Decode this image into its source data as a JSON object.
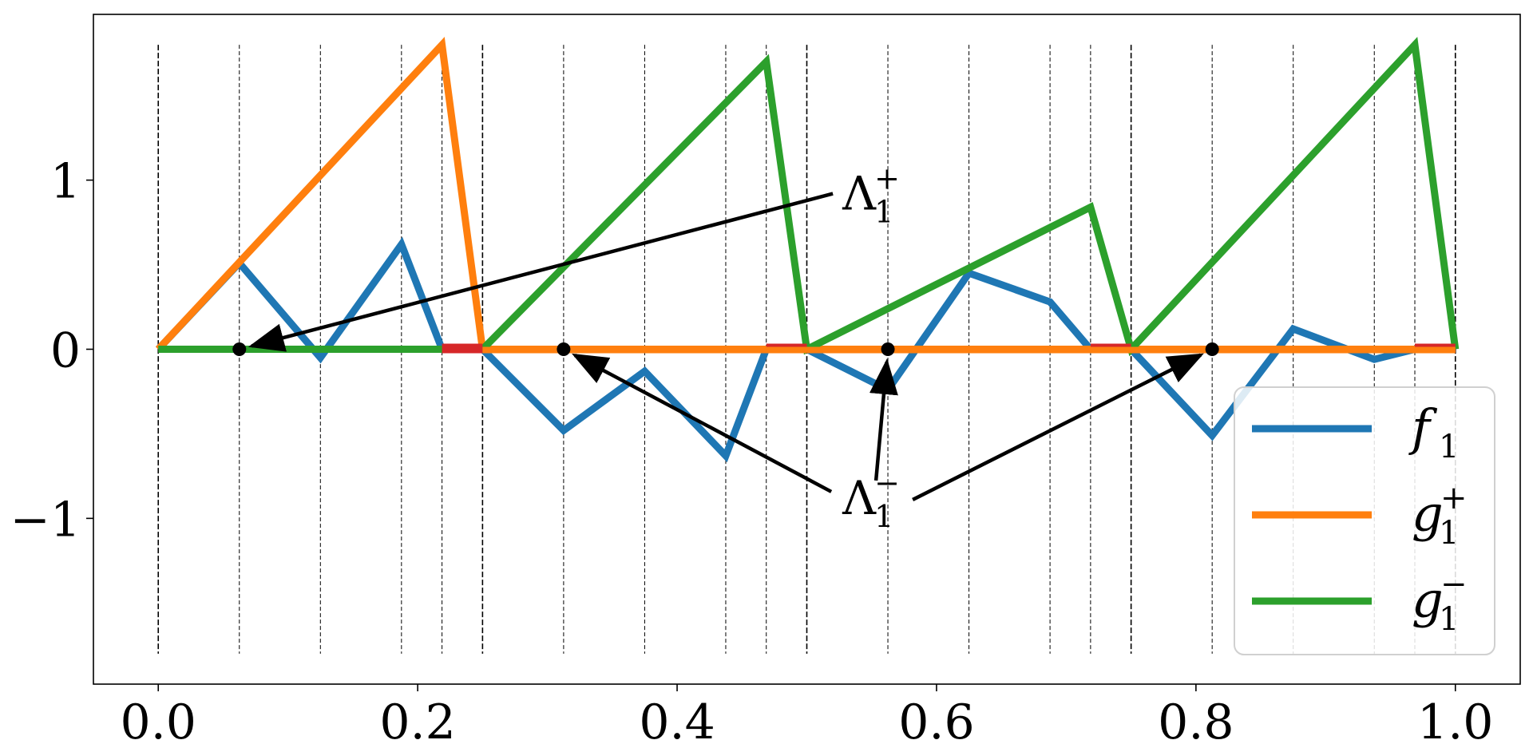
{
  "chart_data": {
    "type": "line",
    "xlim": [
      -0.05,
      1.05
    ],
    "ylim": [
      -1.98,
      1.98
    ],
    "x_ticks": [
      0.0,
      0.2,
      0.4,
      0.6,
      0.8,
      1.0
    ],
    "x_tick_labels": [
      "0.0",
      "0.2",
      "0.4",
      "0.6",
      "0.8",
      "1.0"
    ],
    "y_ticks": [
      1,
      0,
      -1
    ],
    "y_tick_labels": [
      "1",
      "0",
      "−1"
    ],
    "grid": "vertical dashed lines",
    "vertical_lines": [
      0.0,
      0.0625,
      0.125,
      0.1875,
      0.21875,
      0.25,
      0.3125,
      0.375,
      0.4375,
      0.46875,
      0.5,
      0.5625,
      0.625,
      0.6875,
      0.71875,
      0.75,
      0.8125,
      0.875,
      0.9375,
      0.96875,
      1.0
    ],
    "vertical_lines_y_range": [
      -1.8,
      1.8
    ],
    "legend_position": "lower-right",
    "series": [
      {
        "name": "f",
        "name_sub": "1",
        "color": "#1f77b4",
        "x": [
          0.0,
          0.0625,
          0.125,
          0.1875,
          0.21875,
          0.25,
          0.3125,
          0.375,
          0.4375,
          0.46875,
          0.5,
          0.5625,
          0.625,
          0.6875,
          0.71875,
          0.75,
          0.8125,
          0.875,
          0.9375,
          0.96875,
          1.0
        ],
        "y": [
          0.0,
          0.51,
          -0.05,
          0.62,
          0.0,
          0.0,
          -0.48,
          -0.13,
          -0.63,
          0.0,
          0.0,
          -0.24,
          0.45,
          0.28,
          0.0,
          0.0,
          -0.51,
          0.12,
          -0.06,
          0.0,
          0.0
        ]
      },
      {
        "name": "g",
        "name_sup": "+",
        "name_sub": "1",
        "color": "#ff7f0e",
        "x": [
          0.0,
          0.21875,
          0.25,
          1.0
        ],
        "y": [
          0.0,
          1.8,
          0.0,
          0.0
        ]
      },
      {
        "name": "g",
        "name_sup": "−",
        "name_sub": "1",
        "color": "#2ca02c",
        "x": [
          0.0,
          0.25,
          0.46875,
          0.5,
          0.71875,
          0.75,
          0.96875,
          1.0
        ],
        "y": [
          0.0,
          0.0,
          1.7,
          0.0,
          0.84,
          0.0,
          1.8,
          0.0
        ]
      }
    ],
    "red_segments": {
      "color": "#d62728",
      "ranges": [
        [
          0.21875,
          0.25
        ],
        [
          0.46875,
          0.5
        ],
        [
          0.71875,
          0.75
        ],
        [
          0.96875,
          1.0
        ]
      ]
    },
    "points": {
      "color": "#000000",
      "x": [
        0.0625,
        0.3125,
        0.5625,
        0.8125
      ],
      "y": [
        0,
        0,
        0,
        0
      ]
    },
    "annotations": [
      {
        "text": "Λ",
        "sup": "+",
        "sub": "1",
        "text_xy": [
          0.525,
          0.92
        ],
        "targets": [
          [
            0.0625,
            0.0
          ]
        ]
      },
      {
        "text": "Λ",
        "sup": "−",
        "sub": "1",
        "text_xy": [
          0.525,
          -0.88
        ],
        "targets": [
          [
            0.3125,
            0.0
          ],
          [
            0.5625,
            0.0
          ],
          [
            0.8125,
            0.0
          ]
        ]
      }
    ]
  }
}
